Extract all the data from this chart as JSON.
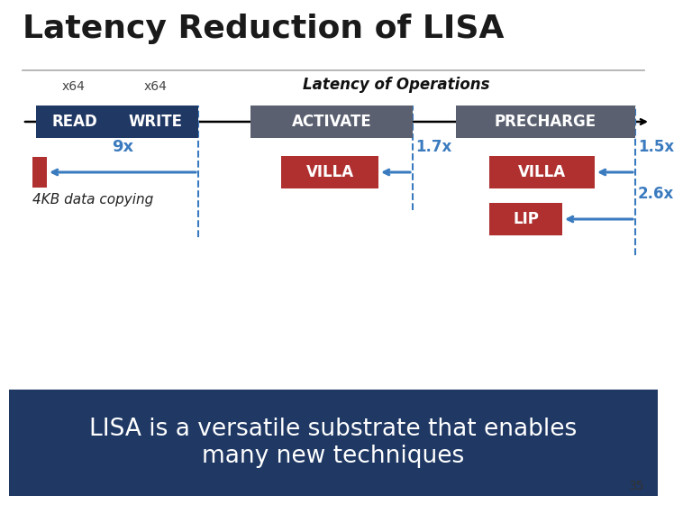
{
  "title": "Latency Reduction of LISA",
  "subtitle": "Latency of Operations",
  "bg_color": "#ffffff",
  "footer_bg": "#1f3864",
  "footer_text": "LISA is a versatile substrate that enables\nmany new techniques",
  "footer_text_color": "#ffffff",
  "slide_number": "35",
  "title_color": "#1a1a1a",
  "separator_color": "#aaaaaa",
  "read_label": "READ",
  "write_label": "WRITE",
  "read_color": "#1f3864",
  "write_color": "#1f3864",
  "activate_label": "ACTIVATE",
  "precharge_label": "PRECHARGE",
  "activate_color": "#5a6070",
  "precharge_color": "#5a6070",
  "villa_color": "#b03030",
  "lip_color": "#b03030",
  "arrow_color": "#3a7bbf",
  "nine_x_label": "9x",
  "one7_label": "1.7x",
  "one5_label": "1.5x",
  "two6_label": "2.6x",
  "data_copy_label": "4KB data copying"
}
